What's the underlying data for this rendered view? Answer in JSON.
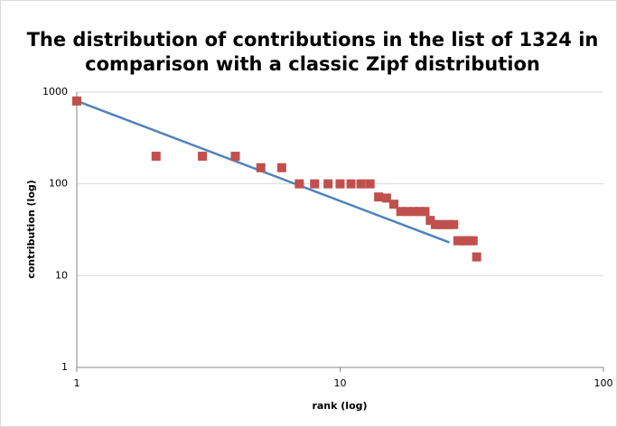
{
  "chart_data": {
    "type": "scatter",
    "title": [
      "The distribution of contributions in the list of 1324 in",
      "comparison with a classic Zipf distribution"
    ],
    "x_label": "rank (log)",
    "y_label": "contribution (log)",
    "log_x": true,
    "log_y": true,
    "grid": true,
    "xlim": [
      1,
      100
    ],
    "ylim": [
      1,
      1000
    ],
    "xticks": [
      1,
      10,
      100
    ],
    "yticks": [
      1,
      10,
      100,
      1000
    ],
    "series": [
      {
        "type": "line",
        "color": "#4f81bd",
        "x": [
          1,
          26
        ],
        "values": [
          800,
          23
        ]
      },
      {
        "type": "scatter",
        "color": "#c0504d",
        "x": [
          1,
          2,
          3,
          4,
          5,
          6,
          7,
          8,
          9,
          10,
          11,
          12,
          13,
          14,
          15,
          16,
          17,
          18,
          19,
          20,
          21,
          22,
          23,
          24,
          25,
          26,
          27,
          28,
          29,
          30,
          31,
          32,
          33
        ],
        "values": [
          800,
          200,
          200,
          200,
          150,
          150,
          100,
          100,
          100,
          100,
          100,
          100,
          100,
          72,
          70,
          60,
          50,
          50,
          50,
          50,
          50,
          40,
          36,
          36,
          36,
          36,
          36,
          24,
          24,
          24,
          24,
          24,
          16
        ]
      }
    ]
  }
}
